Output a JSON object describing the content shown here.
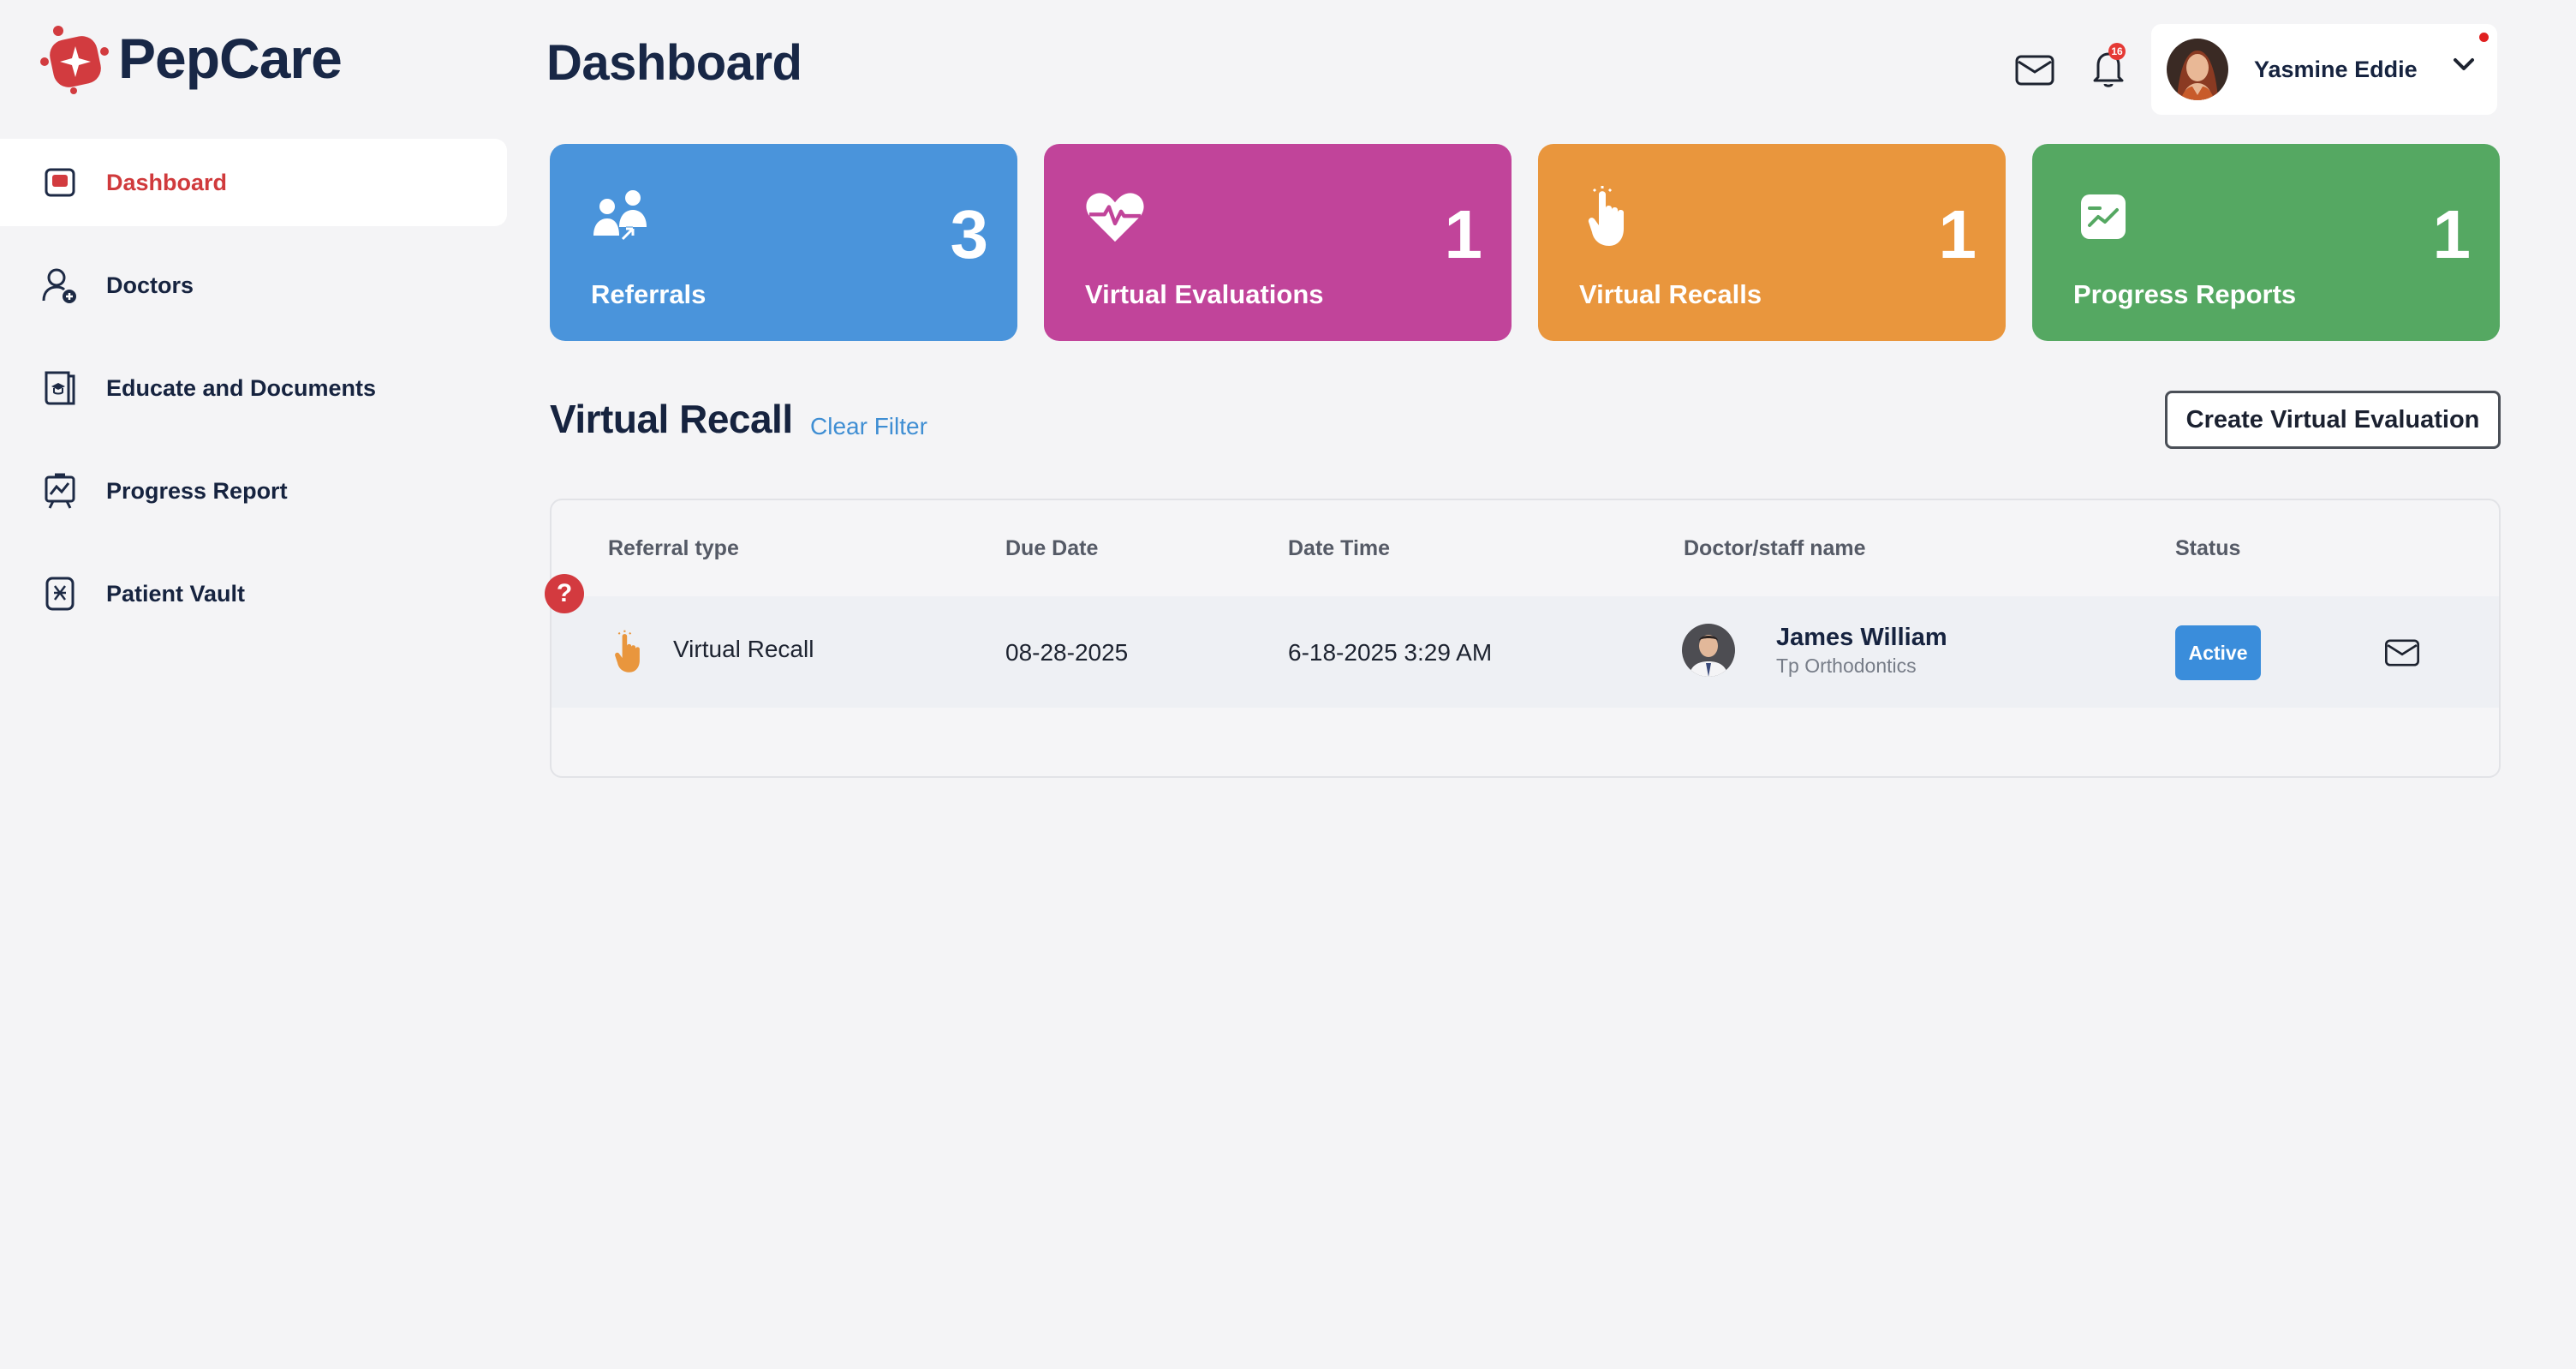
{
  "app": {
    "name": "PepCare"
  },
  "sidebar": {
    "items": [
      {
        "label": "Dashboard",
        "icon": "dashboard-icon",
        "active": true
      },
      {
        "label": "Doctors",
        "icon": "user-plus-icon",
        "active": false
      },
      {
        "label": "Educate and Documents",
        "icon": "education-doc-icon",
        "active": false
      },
      {
        "label": "Progress Report",
        "icon": "progress-board-icon",
        "active": false
      },
      {
        "label": "Patient Vault",
        "icon": "vault-icon",
        "active": false
      }
    ]
  },
  "header": {
    "title": "Dashboard",
    "notification_count": "16",
    "user": {
      "name": "Yasmine Eddie"
    }
  },
  "stats": [
    {
      "label": "Referrals",
      "count": "3",
      "color": "#4a94db",
      "icon": "referrals-icon"
    },
    {
      "label": "Virtual Evaluations",
      "count": "1",
      "color": "#c1449a",
      "icon": "heartbeat-icon"
    },
    {
      "label": "Virtual Recalls",
      "count": "1",
      "color": "#e9963d",
      "icon": "hand-pointer-icon"
    },
    {
      "label": "Progress Reports",
      "count": "1",
      "color": "#55a862",
      "icon": "chart-icon"
    }
  ],
  "section": {
    "title": "Virtual Recall",
    "clear_filter": "Clear Filter",
    "create_button": "Create Virtual Evaluation"
  },
  "table": {
    "columns": [
      "Referral type",
      "Due Date",
      "Date Time",
      "Doctor/staff name",
      "Status"
    ],
    "rows": [
      {
        "referral_type": "Virtual Recall",
        "due_date": "08-28-2025",
        "date_time": "6-18-2025 3:29 AM",
        "doctor_name": "James William",
        "doctor_org": "Tp Orthodontics",
        "status": "Active"
      }
    ],
    "help_badge": "?"
  }
}
